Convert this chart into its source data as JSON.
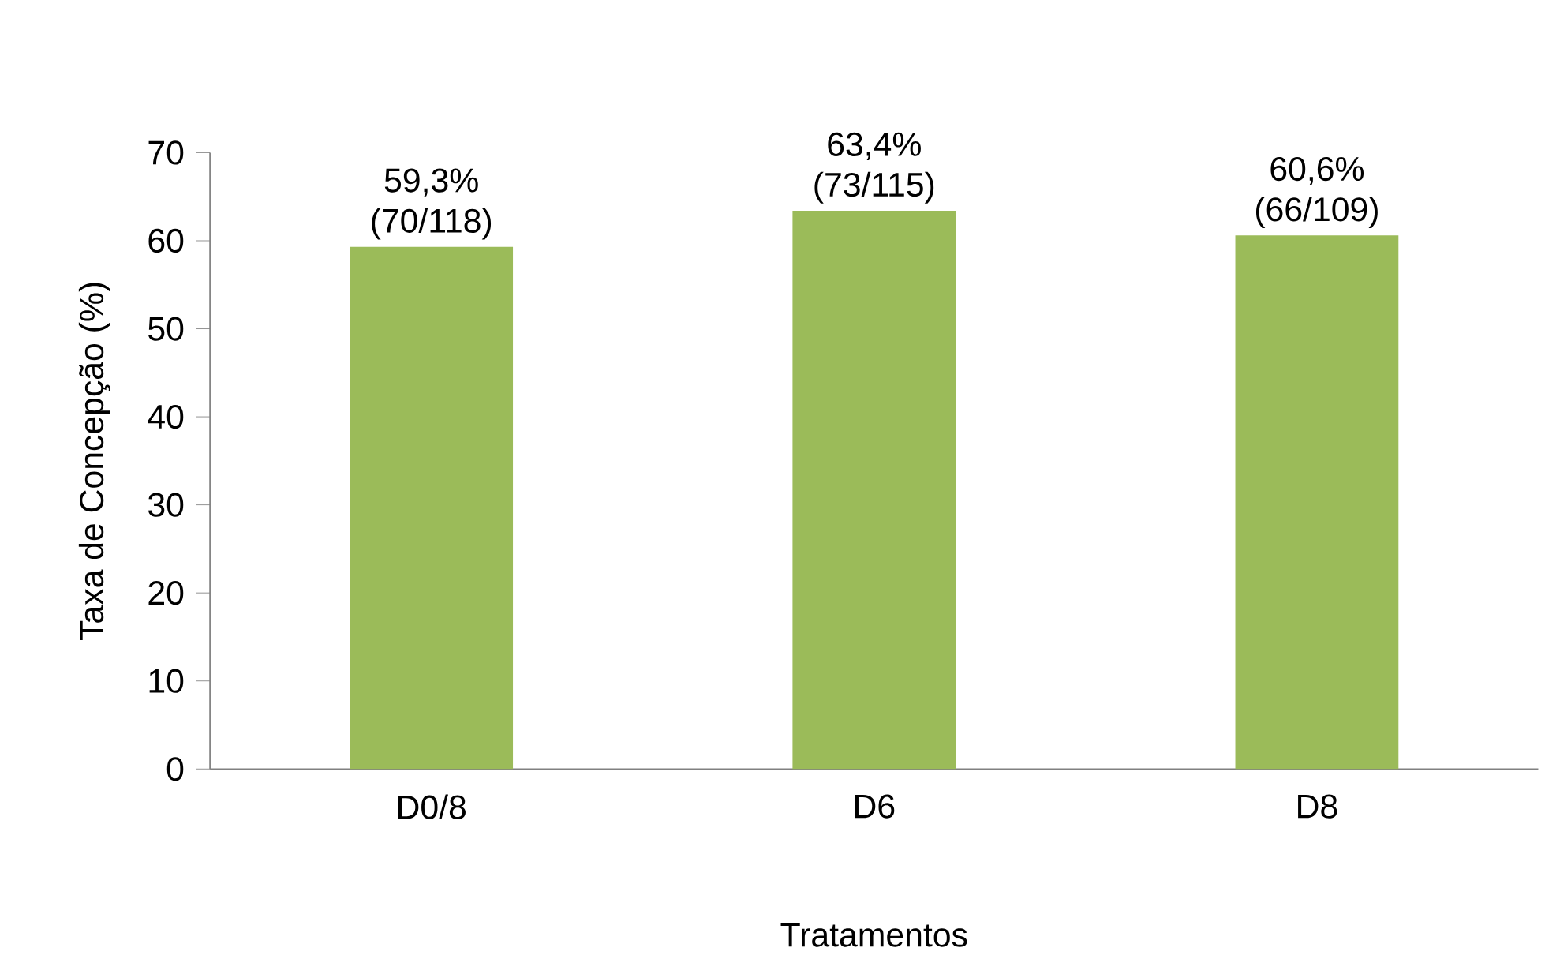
{
  "chart_data": {
    "type": "bar",
    "categories": [
      "D0/8",
      "D6",
      "D8"
    ],
    "values": [
      59.3,
      63.4,
      60.6
    ],
    "value_labels": [
      "59,3% (70/118)",
      "63,4% (73/115)",
      "60,6% (66/109)"
    ],
    "color": "#9bbb59",
    "xlabel": "Tratamentos",
    "ylabel": "Taxa de Concepção (%)",
    "ylim": [
      0,
      70
    ],
    "yticks": [
      0,
      10,
      20,
      30,
      40,
      50,
      60,
      70
    ],
    "grid": false,
    "legend": false
  }
}
